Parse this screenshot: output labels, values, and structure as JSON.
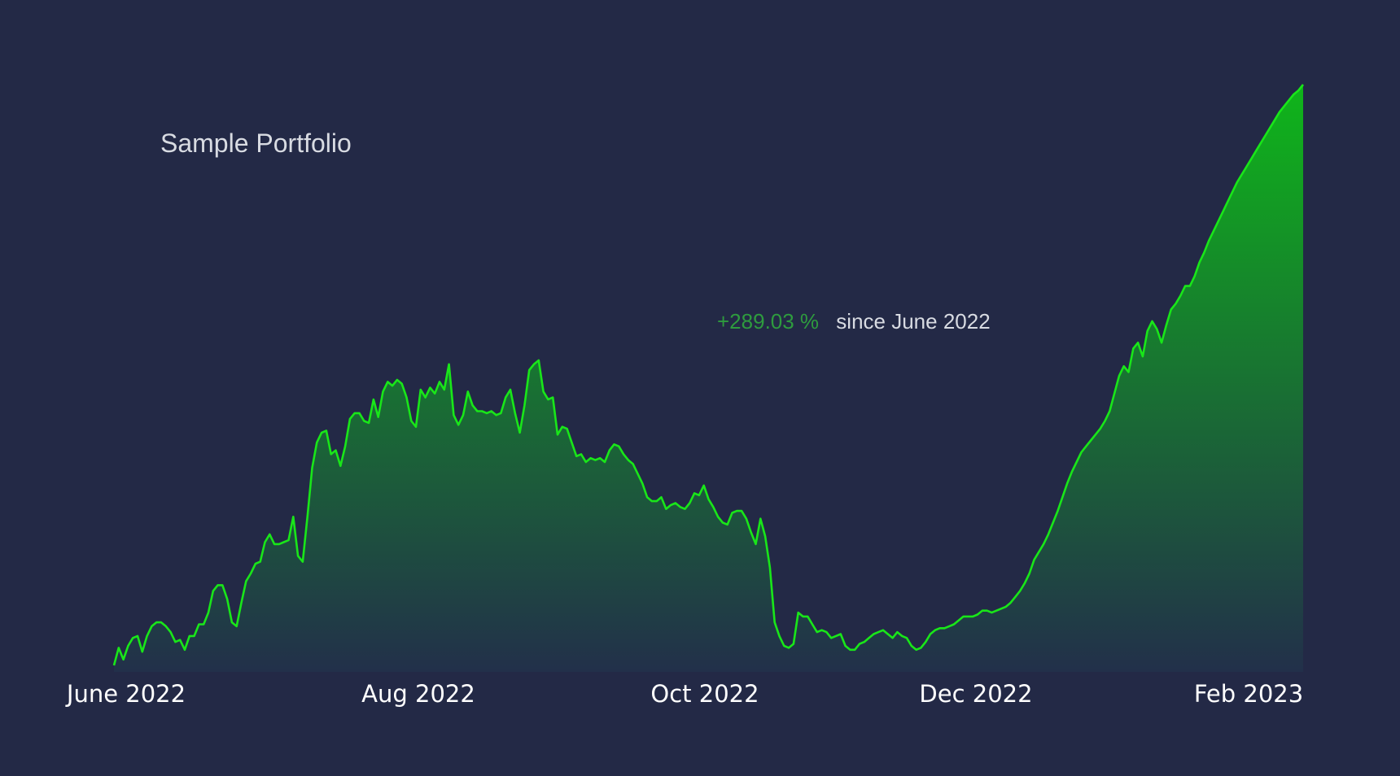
{
  "chart_data": {
    "type": "area",
    "title": "Sample Portfolio",
    "annotation": {
      "change": "+289.03 %",
      "caption": "since June 2022"
    },
    "x_ticks": [
      "June 2022",
      "Aug 2022",
      "Oct 2022",
      "Dec 2022",
      "Feb 2023"
    ],
    "x_range": [
      "2022-06-01",
      "2023-02-28"
    ],
    "ylim": [
      0,
      297
    ],
    "grid": false,
    "legend": "none",
    "colors": {
      "background": "#232946",
      "line": "#19e619",
      "fill_top": "#0fb51a",
      "fill_bottom": "#22304a",
      "change_value": "#2e9b3e",
      "title": "#d8dbe2",
      "tick_label": "#ffffff"
    },
    "series": [
      {
        "values": [
          [
            0,
            0
          ],
          [
            2,
            9
          ],
          [
            4,
            3
          ],
          [
            6,
            10
          ],
          [
            8,
            14
          ],
          [
            10,
            15
          ],
          [
            12,
            7
          ],
          [
            14,
            15
          ],
          [
            16,
            20
          ],
          [
            18,
            22
          ],
          [
            20,
            22
          ],
          [
            22,
            20
          ],
          [
            24,
            17
          ],
          [
            26,
            12
          ],
          [
            28,
            13
          ],
          [
            30,
            8
          ],
          [
            32,
            15
          ],
          [
            34,
            15
          ],
          [
            36,
            21
          ],
          [
            38,
            21
          ],
          [
            40,
            27
          ],
          [
            42,
            38
          ],
          [
            44,
            41
          ],
          [
            46,
            41
          ],
          [
            48,
            34
          ],
          [
            50,
            22
          ],
          [
            52,
            20
          ],
          [
            54,
            32
          ],
          [
            56,
            43
          ],
          [
            58,
            47
          ],
          [
            60,
            52
          ],
          [
            62,
            53
          ],
          [
            64,
            63
          ],
          [
            66,
            67
          ],
          [
            68,
            62
          ],
          [
            70,
            62
          ],
          [
            72,
            63
          ],
          [
            74,
            64
          ],
          [
            76,
            76
          ],
          [
            78,
            56
          ],
          [
            80,
            53
          ],
          [
            82,
            76
          ],
          [
            84,
            101
          ],
          [
            86,
            114
          ],
          [
            88,
            119
          ],
          [
            90,
            120
          ],
          [
            92,
            108
          ],
          [
            94,
            110
          ],
          [
            96,
            102
          ],
          [
            98,
            112
          ],
          [
            100,
            126
          ],
          [
            102,
            129
          ],
          [
            104,
            129
          ],
          [
            106,
            125
          ],
          [
            108,
            124
          ],
          [
            110,
            136
          ],
          [
            112,
            127
          ],
          [
            114,
            140
          ],
          [
            116,
            145
          ],
          [
            118,
            143
          ],
          [
            120,
            146
          ],
          [
            122,
            144
          ],
          [
            124,
            137
          ],
          [
            126,
            125
          ],
          [
            128,
            122
          ],
          [
            130,
            141
          ],
          [
            132,
            137
          ],
          [
            134,
            142
          ],
          [
            136,
            139
          ],
          [
            138,
            145
          ],
          [
            140,
            141
          ],
          [
            142,
            154
          ],
          [
            144,
            128
          ],
          [
            146,
            123
          ],
          [
            148,
            128
          ],
          [
            150,
            140
          ],
          [
            152,
            133
          ],
          [
            154,
            130
          ],
          [
            156,
            130
          ],
          [
            158,
            129
          ],
          [
            160,
            130
          ],
          [
            162,
            128
          ],
          [
            164,
            129
          ],
          [
            166,
            137
          ],
          [
            168,
            141
          ],
          [
            170,
            129
          ],
          [
            172,
            119
          ],
          [
            174,
            133
          ],
          [
            176,
            151
          ],
          [
            178,
            154
          ],
          [
            180,
            156
          ],
          [
            182,
            140
          ],
          [
            184,
            136
          ],
          [
            186,
            137
          ],
          [
            188,
            118
          ],
          [
            190,
            122
          ],
          [
            192,
            121
          ],
          [
            194,
            114
          ],
          [
            196,
            107
          ],
          [
            198,
            108
          ],
          [
            200,
            104
          ],
          [
            202,
            106
          ],
          [
            204,
            105
          ],
          [
            206,
            106
          ],
          [
            208,
            104
          ],
          [
            210,
            110
          ],
          [
            212,
            113
          ],
          [
            214,
            112
          ],
          [
            216,
            108
          ],
          [
            218,
            105
          ],
          [
            220,
            103
          ],
          [
            222,
            98
          ],
          [
            224,
            93
          ],
          [
            226,
            86
          ],
          [
            228,
            84
          ],
          [
            230,
            84
          ],
          [
            232,
            86
          ],
          [
            234,
            80
          ],
          [
            236,
            82
          ],
          [
            238,
            83
          ],
          [
            240,
            81
          ],
          [
            242,
            80
          ],
          [
            244,
            83
          ],
          [
            246,
            88
          ],
          [
            248,
            87
          ],
          [
            250,
            92
          ],
          [
            252,
            85
          ],
          [
            254,
            81
          ],
          [
            256,
            76
          ],
          [
            258,
            73
          ],
          [
            260,
            72
          ],
          [
            262,
            78
          ],
          [
            264,
            79
          ],
          [
            266,
            79
          ],
          [
            268,
            75
          ],
          [
            270,
            68
          ],
          [
            272,
            62
          ],
          [
            274,
            75
          ],
          [
            276,
            66
          ],
          [
            278,
            50
          ],
          [
            280,
            22
          ],
          [
            282,
            15
          ],
          [
            284,
            10
          ],
          [
            286,
            9
          ],
          [
            288,
            11
          ],
          [
            290,
            27
          ],
          [
            292,
            25
          ],
          [
            294,
            25
          ],
          [
            296,
            21
          ],
          [
            298,
            17
          ],
          [
            300,
            18
          ],
          [
            302,
            17
          ],
          [
            304,
            14
          ],
          [
            306,
            15
          ],
          [
            308,
            16
          ],
          [
            310,
            10
          ],
          [
            312,
            8
          ],
          [
            314,
            8
          ],
          [
            316,
            11
          ],
          [
            318,
            12
          ],
          [
            320,
            14
          ],
          [
            322,
            16
          ],
          [
            324,
            17
          ],
          [
            326,
            18
          ],
          [
            328,
            16
          ],
          [
            330,
            14
          ],
          [
            332,
            17
          ],
          [
            334,
            15
          ],
          [
            336,
            14
          ],
          [
            338,
            10
          ],
          [
            340,
            8
          ],
          [
            342,
            9
          ],
          [
            344,
            12
          ],
          [
            346,
            16
          ],
          [
            348,
            18
          ],
          [
            350,
            19
          ],
          [
            352,
            19
          ],
          [
            354,
            20
          ],
          [
            356,
            21
          ],
          [
            358,
            23
          ],
          [
            360,
            25
          ],
          [
            362,
            25
          ],
          [
            364,
            25
          ],
          [
            366,
            26
          ],
          [
            368,
            28
          ],
          [
            370,
            28
          ],
          [
            372,
            27
          ],
          [
            374,
            28
          ],
          [
            376,
            29
          ],
          [
            378,
            30
          ],
          [
            380,
            32
          ],
          [
            382,
            35
          ],
          [
            384,
            38
          ],
          [
            386,
            42
          ],
          [
            388,
            47
          ],
          [
            390,
            54
          ],
          [
            392,
            58
          ],
          [
            394,
            62
          ],
          [
            396,
            67
          ],
          [
            398,
            73
          ],
          [
            400,
            79
          ],
          [
            402,
            86
          ],
          [
            404,
            93
          ],
          [
            406,
            99
          ],
          [
            408,
            104
          ],
          [
            410,
            109
          ],
          [
            412,
            112
          ],
          [
            414,
            115
          ],
          [
            416,
            118
          ],
          [
            418,
            121
          ],
          [
            420,
            125
          ],
          [
            422,
            130
          ],
          [
            424,
            139
          ],
          [
            426,
            148
          ],
          [
            428,
            153
          ],
          [
            430,
            150
          ],
          [
            432,
            162
          ],
          [
            434,
            165
          ],
          [
            436,
            158
          ],
          [
            438,
            171
          ],
          [
            440,
            176
          ],
          [
            442,
            172
          ],
          [
            444,
            165
          ],
          [
            446,
            174
          ],
          [
            448,
            182
          ],
          [
            450,
            185
          ],
          [
            452,
            189
          ],
          [
            454,
            194
          ],
          [
            456,
            194
          ],
          [
            458,
            199
          ],
          [
            460,
            206
          ],
          [
            462,
            211
          ],
          [
            464,
            217
          ],
          [
            466,
            222
          ],
          [
            468,
            227
          ],
          [
            470,
            232
          ],
          [
            472,
            237
          ],
          [
            474,
            242
          ],
          [
            476,
            247
          ],
          [
            478,
            251
          ],
          [
            480,
            255
          ],
          [
            482,
            259
          ],
          [
            484,
            263
          ],
          [
            486,
            267
          ],
          [
            488,
            271
          ],
          [
            490,
            275
          ],
          [
            492,
            279
          ],
          [
            494,
            283
          ],
          [
            496,
            286
          ],
          [
            498,
            289
          ],
          [
            500,
            292
          ],
          [
            502,
            294
          ],
          [
            504,
            297
          ]
        ]
      }
    ]
  }
}
